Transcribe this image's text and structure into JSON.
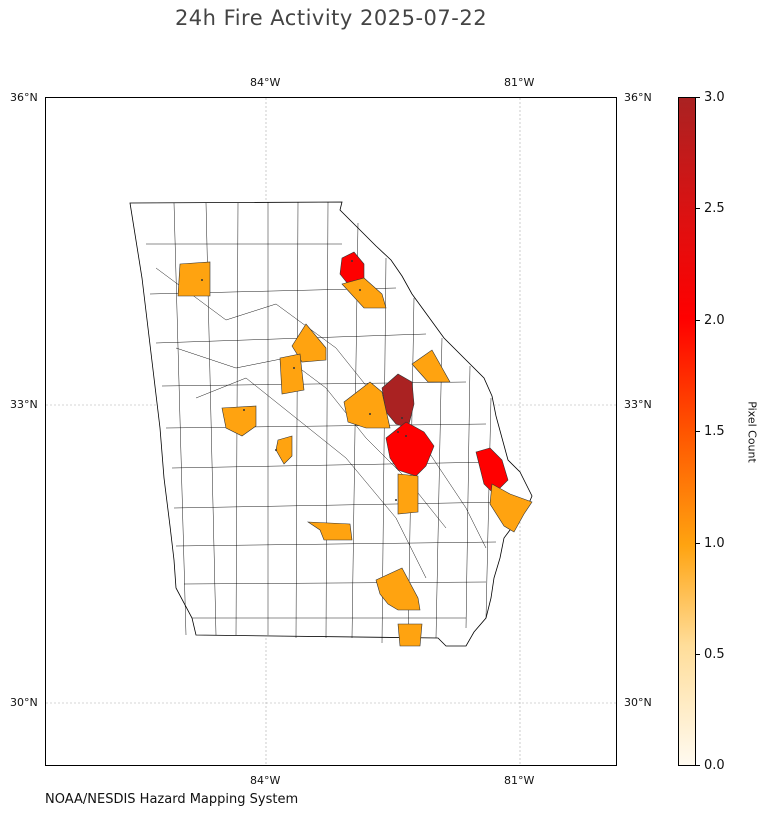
{
  "title": "24h Fire Activity 2025-07-22",
  "map": {
    "lon_ticks": [
      "84°W",
      "81°W"
    ],
    "lat_ticks": [
      "36°N",
      "33°N",
      "30°N"
    ],
    "region": "Georgia counties",
    "highlighted_counties": [
      {
        "value": 3.0
      },
      {
        "value": 2.0
      },
      {
        "value": 2.0
      },
      {
        "value": 2.0
      },
      {
        "value": 1.0
      },
      {
        "value": 1.0
      },
      {
        "value": 1.0
      },
      {
        "value": 1.0
      },
      {
        "value": 1.0
      },
      {
        "value": 1.0
      },
      {
        "value": 1.0
      },
      {
        "value": 1.0
      },
      {
        "value": 1.0
      },
      {
        "value": 1.0
      },
      {
        "value": 1.0
      },
      {
        "value": 1.0
      }
    ]
  },
  "colorbar": {
    "label": "Pixel Count",
    "ticks": [
      "3.0",
      "2.5",
      "2.0",
      "1.5",
      "1.0",
      "0.5",
      "0.0"
    ],
    "range": [
      0.0,
      3.0
    ],
    "colors": {
      "low": "#fffaf0",
      "mid": "#ffa310",
      "high": "#ff0000",
      "max": "#aa2222"
    }
  },
  "credit": "NOAA/NESDIS Hazard Mapping System"
}
